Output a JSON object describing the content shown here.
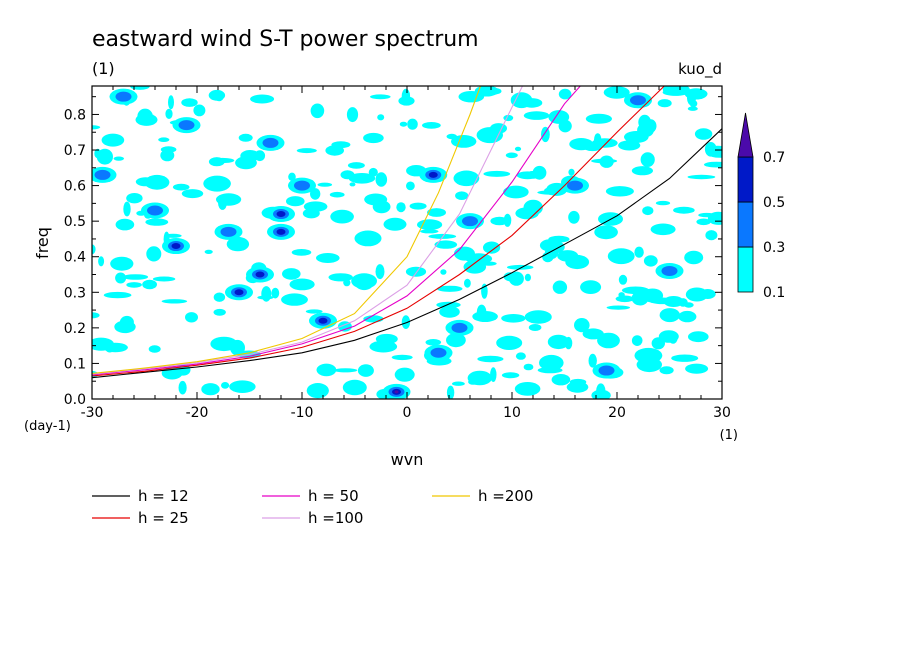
{
  "chart_data": {
    "type": "heatmap",
    "title": "eastward wind S-T power spectrum",
    "subtitle_left": "(1)",
    "subtitle_right": "kuo_d",
    "xlabel": "wvn",
    "ylabel": "freq",
    "x_unit": "(1)",
    "y_unit": "(day-1)",
    "xlim": [
      -30,
      30
    ],
    "ylim": [
      0,
      0.88
    ],
    "x_ticks": [
      -30,
      -20,
      -10,
      0,
      10,
      20,
      30
    ],
    "x_tick_labels": [
      "-30",
      "-20",
      "-10",
      "0",
      "10",
      "20",
      "30"
    ],
    "y_ticks": [
      0,
      0.1,
      0.2,
      0.3,
      0.4,
      0.5,
      0.6,
      0.7,
      0.8
    ],
    "y_tick_labels": [
      "0.0",
      "0.1",
      "0.2",
      "0.3",
      "0.4",
      "0.5",
      "0.6",
      "0.7",
      "0.8"
    ],
    "colorbar": {
      "levels": [
        0.1,
        0.3,
        0.5,
        0.7
      ],
      "labels": [
        "0.1",
        "0.3",
        "0.5",
        "0.7"
      ],
      "colors": [
        "#00ffff",
        "#0a78ff",
        "#0019c8",
        "#4b0aaa"
      ],
      "extend": "max"
    },
    "contour_blobs": [
      {
        "x": -1,
        "y": 0.02,
        "level": 3
      },
      {
        "x": -12,
        "y": 0.47,
        "level": 2
      },
      {
        "x": -12,
        "y": 0.52,
        "level": 2
      },
      {
        "x": -14,
        "y": 0.35,
        "level": 2
      },
      {
        "x": -16,
        "y": 0.3,
        "level": 2
      },
      {
        "x": -8,
        "y": 0.22,
        "level": 2
      },
      {
        "x": -22,
        "y": 0.43,
        "level": 2
      },
      {
        "x": -27,
        "y": 0.85,
        "level": 1
      },
      {
        "x": -24,
        "y": 0.53,
        "level": 1
      },
      {
        "x": -21,
        "y": 0.77,
        "level": 1
      },
      {
        "x": -17,
        "y": 0.47,
        "level": 1
      },
      {
        "x": -13,
        "y": 0.72,
        "level": 1
      },
      {
        "x": -10,
        "y": 0.6,
        "level": 1
      },
      {
        "x": 2.5,
        "y": 0.63,
        "level": 2
      },
      {
        "x": 5,
        "y": 0.2,
        "level": 1
      },
      {
        "x": 6,
        "y": 0.5,
        "level": 1
      },
      {
        "x": 3,
        "y": 0.13,
        "level": 1
      },
      {
        "x": 22,
        "y": 0.84,
        "level": 1
      },
      {
        "x": 16,
        "y": 0.6,
        "level": 1
      },
      {
        "x": 25,
        "y": 0.36,
        "level": 1
      },
      {
        "x": 19,
        "y": 0.08,
        "level": 1
      },
      {
        "x": -29,
        "y": 0.63,
        "level": 1
      }
    ],
    "series": [
      {
        "name": "h = 12",
        "color": "#000000",
        "x": [
          -30,
          -25,
          -20,
          -15,
          -10,
          -5,
          0,
          5,
          10,
          15,
          20,
          25,
          30
        ],
        "y": [
          0.06,
          0.075,
          0.09,
          0.108,
          0.13,
          0.165,
          0.215,
          0.28,
          0.355,
          0.435,
          0.515,
          0.62,
          0.76
        ]
      },
      {
        "name": "h = 25",
        "color": "#e60000",
        "x": [
          -30,
          -25,
          -20,
          -15,
          -10,
          -5,
          0,
          5,
          10,
          15,
          20,
          24.5
        ],
        "y": [
          0.065,
          0.078,
          0.095,
          0.115,
          0.145,
          0.19,
          0.255,
          0.35,
          0.46,
          0.6,
          0.75,
          0.88
        ]
      },
      {
        "name": "h = 50",
        "color": "#e600c8",
        "x": [
          -30,
          -25,
          -20,
          -15,
          -10,
          -5,
          0,
          5,
          10,
          15,
          16.5
        ],
        "y": [
          0.068,
          0.082,
          0.098,
          0.12,
          0.155,
          0.205,
          0.29,
          0.42,
          0.61,
          0.83,
          0.88
        ]
      },
      {
        "name": "h =100",
        "color": "#dca0e6",
        "x": [
          -30,
          -25,
          -20,
          -15,
          -10,
          -5,
          0,
          5,
          10,
          11
        ],
        "y": [
          0.07,
          0.085,
          0.102,
          0.125,
          0.16,
          0.22,
          0.32,
          0.52,
          0.82,
          0.88
        ]
      },
      {
        "name": "h =200",
        "color": "#f0c800",
        "x": [
          -30,
          -25,
          -20,
          -15,
          -10,
          -5,
          0,
          3,
          6,
          7
        ],
        "y": [
          0.072,
          0.087,
          0.105,
          0.13,
          0.17,
          0.24,
          0.4,
          0.58,
          0.8,
          0.88
        ]
      }
    ]
  }
}
